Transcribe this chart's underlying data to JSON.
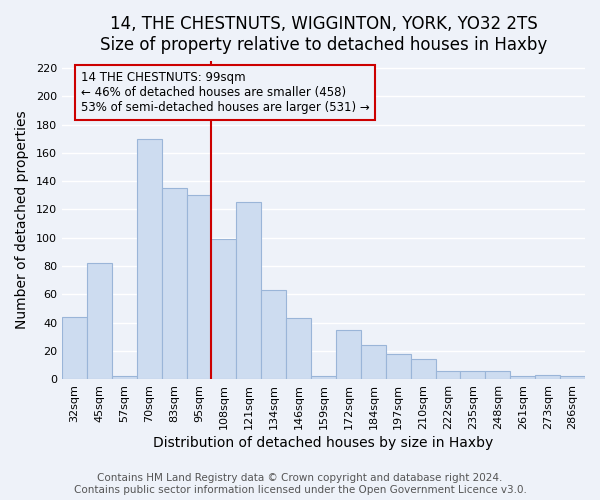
{
  "title": "14, THE CHESTNUTS, WIGGINTON, YORK, YO32 2TS",
  "subtitle": "Size of property relative to detached houses in Haxby",
  "xlabel": "Distribution of detached houses by size in Haxby",
  "ylabel": "Number of detached properties",
  "bar_color": "#cddcf0",
  "bar_edge_color": "#9ab5d8",
  "bin_labels": [
    "32sqm",
    "45sqm",
    "57sqm",
    "70sqm",
    "83sqm",
    "95sqm",
    "108sqm",
    "121sqm",
    "134sqm",
    "146sqm",
    "159sqm",
    "172sqm",
    "184sqm",
    "197sqm",
    "210sqm",
    "222sqm",
    "235sqm",
    "248sqm",
    "261sqm",
    "273sqm",
    "286sqm"
  ],
  "values": [
    44,
    82,
    2,
    170,
    135,
    130,
    99,
    125,
    63,
    43,
    2,
    35,
    24,
    18,
    14,
    6,
    6,
    6,
    2,
    3,
    2
  ],
  "marker_bin_index": 5,
  "marker_line_color": "#cc0000",
  "annotation_line1": "14 THE CHESTNUTS: 99sqm",
  "annotation_line2": "← 46% of detached houses are smaller (458)",
  "annotation_line3": "53% of semi-detached houses are larger (531) →",
  "annotation_box_edge": "#cc0000",
  "ylim": [
    0,
    225
  ],
  "yticks": [
    0,
    20,
    40,
    60,
    80,
    100,
    120,
    140,
    160,
    180,
    200,
    220
  ],
  "footer1": "Contains HM Land Registry data © Crown copyright and database right 2024.",
  "footer2": "Contains public sector information licensed under the Open Government Licence v3.0.",
  "background_color": "#eef2f9",
  "grid_color": "#ffffff",
  "title_fontsize": 12,
  "axis_label_fontsize": 10,
  "tick_fontsize": 8,
  "footer_fontsize": 7.5
}
